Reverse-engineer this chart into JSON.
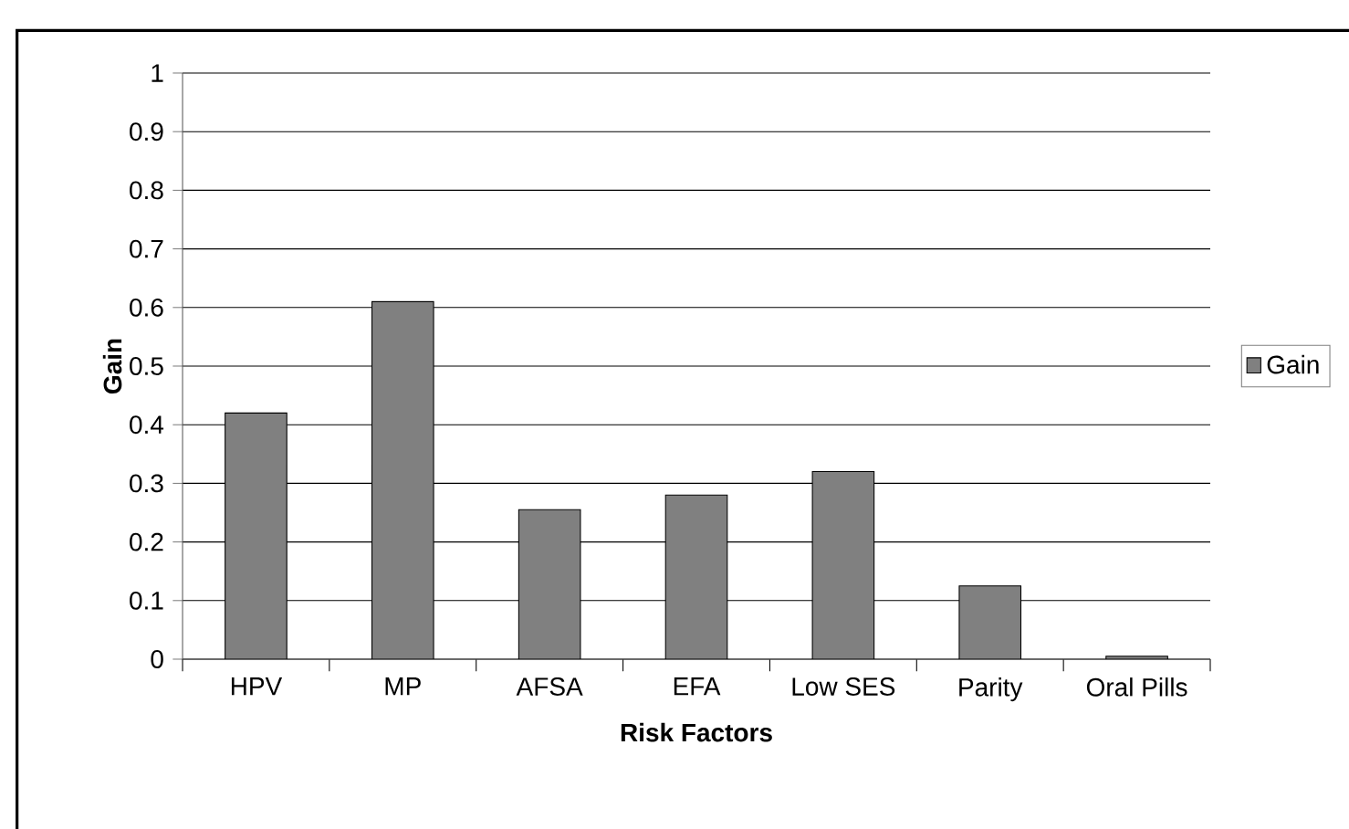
{
  "chart_data": {
    "type": "bar",
    "xlabel": "Risk Factors",
    "ylabel": "Gain",
    "categories": [
      "HPV",
      "MP",
      "AFSA",
      "EFA",
      "Low  SES",
      "Parity",
      "Oral Pills"
    ],
    "series": [
      {
        "name": "Gain",
        "color": "#808080",
        "values": [
          0.42,
          0.61,
          0.255,
          0.28,
          0.32,
          0.125,
          0.005
        ]
      }
    ],
    "ylim": [
      0,
      1
    ],
    "yticks": [
      0,
      0.1,
      0.2,
      0.3,
      0.4,
      0.5,
      0.6,
      0.7,
      0.8,
      0.9,
      1
    ],
    "grid": "y",
    "legend": "right"
  }
}
